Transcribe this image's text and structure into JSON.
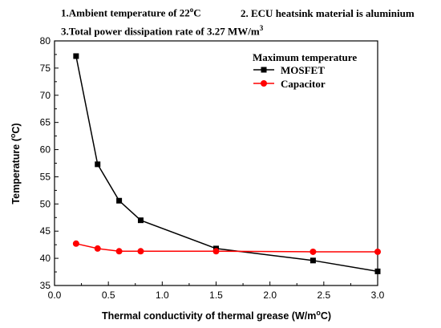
{
  "chart_data": {
    "type": "line",
    "annotations": [
      {
        "text": "1.Ambient temperature of 22",
        "sup": "o",
        "suffix": "C"
      },
      {
        "text": "2. ECU heatsink material is aluminium",
        "sup": "",
        "suffix": ""
      },
      {
        "text": "3.Total power dissipation rate of 3.27 MW/m",
        "sup": "3",
        "suffix": ""
      }
    ],
    "xlabel": "Thermal conductivity of thermal grease (W/m",
    "xlabel_sup": "o",
    "xlabel_suffix": "C)",
    "ylabel": "Temperature (",
    "ylabel_sup": "o",
    "ylabel_suffix": "C)",
    "xlim": [
      0.0,
      3.0
    ],
    "ylim": [
      35,
      80
    ],
    "xticks": [
      "0.0",
      "0.5",
      "1.0",
      "1.5",
      "2.0",
      "2.5",
      "3.0"
    ],
    "yticks": [
      "35",
      "40",
      "45",
      "50",
      "55",
      "60",
      "65",
      "70",
      "75",
      "80"
    ],
    "legend_title": "Maximum temperature",
    "legend_position": "top-right",
    "series": [
      {
        "name": "MOSFET",
        "color": "#000000",
        "marker": "square",
        "x": [
          0.2,
          0.4,
          0.6,
          0.8,
          1.5,
          2.4,
          3.0
        ],
        "y": [
          77.2,
          57.3,
          50.6,
          47.0,
          41.8,
          39.6,
          37.6
        ]
      },
      {
        "name": "Capacitor",
        "color": "#ff0000",
        "marker": "circle",
        "x": [
          0.2,
          0.4,
          0.6,
          0.8,
          1.5,
          2.4,
          3.0
        ],
        "y": [
          42.7,
          41.8,
          41.3,
          41.3,
          41.3,
          41.2,
          41.2
        ]
      }
    ]
  }
}
